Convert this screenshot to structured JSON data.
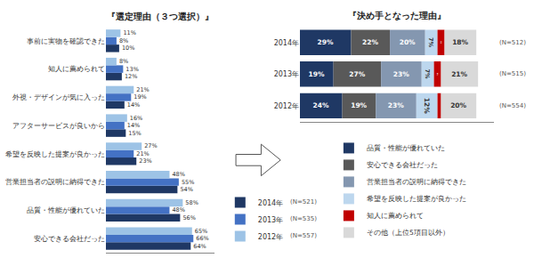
{
  "chart_data": [
    {
      "type": "bar",
      "orientation": "horizontal",
      "title": "『選定理由（３つ選択）』",
      "categories": [
        "安心できる会社だった",
        "品質・性能が優れていた",
        "営業担当者の説明に納得できた",
        "希望を反映した提案が良かった",
        "アフターサービスが良いから",
        "外視・デザインが気に入った",
        "知人に薦められて",
        "事前に実物を確認できた"
      ],
      "series": [
        {
          "name": "2014年",
          "color": "#1f3864",
          "values": [
            64,
            56,
            54,
            23,
            15,
            14,
            12,
            10
          ],
          "value_labels": [
            "64%",
            "56%",
            "54%",
            "23%",
            "15%",
            "14%",
            "12%",
            "10%"
          ]
        },
        {
          "name": "2013年",
          "color": "#4472c4",
          "values": [
            66,
            48,
            55,
            21,
            14,
            19,
            13,
            8
          ],
          "value_labels": [
            "66%",
            "48%",
            "55%",
            "21%",
            "14%",
            "19%",
            "13%",
            "8%"
          ]
        },
        {
          "name": "2012年",
          "color": "#9dc3e6",
          "values": [
            65,
            58,
            48,
            27,
            16,
            21,
            8,
            11
          ],
          "value_labels": [
            "65%",
            "58%",
            "48%",
            "27%",
            "16%",
            "21%",
            "8%",
            "11%"
          ]
        }
      ],
      "xlim": [
        0,
        82
      ],
      "grid": false,
      "tick_labels": "y",
      "data_labels": true,
      "annotations": [
        "(N=521)",
        "(N=535)",
        "(N=557)"
      ]
    },
    {
      "type": "bar",
      "orientation": "horizontal",
      "stacked": true,
      "title": "『決め手となった理由』",
      "categories": [
        "2014年",
        "2013年",
        "2012年"
      ],
      "series": [
        {
          "name": "品質・性能が優れていた",
          "color": "#1f3864",
          "values": [
            29,
            19,
            24
          ],
          "value_labels": [
            "29%",
            "19%",
            "24%"
          ]
        },
        {
          "name": "安心できる会社だった",
          "color": "#595959",
          "values": [
            22,
            27,
            19
          ],
          "value_labels": [
            "22%",
            "27%",
            "19%"
          ]
        },
        {
          "name": "営業担当者の説明に納得できた",
          "color": "#8497b0",
          "values": [
            20,
            23,
            23
          ],
          "value_labels": [
            "20%",
            "23%",
            "23%"
          ]
        },
        {
          "name": "希望を反映した提案が良かった",
          "color": "#bdd7ee",
          "values": [
            7,
            7,
            12
          ],
          "value_labels": [
            "7%",
            "7%",
            "12%"
          ]
        },
        {
          "name": "知人に薦められて",
          "color": "#c00000",
          "values": [
            4,
            4,
            2
          ],
          "value_labels": [
            "4%",
            "4%",
            null
          ]
        },
        {
          "name": "その他（上位5項目以外）",
          "color": "#d9d9d9",
          "values": [
            18,
            21,
            20
          ],
          "value_labels": [
            "18%",
            "21%",
            "20%"
          ]
        }
      ],
      "xlim": [
        0,
        110
      ],
      "grid": false,
      "tick_labels": "y",
      "data_labels": true,
      "annotations": [
        "(N=512)",
        "(N=515)",
        "(N=554)"
      ]
    }
  ]
}
